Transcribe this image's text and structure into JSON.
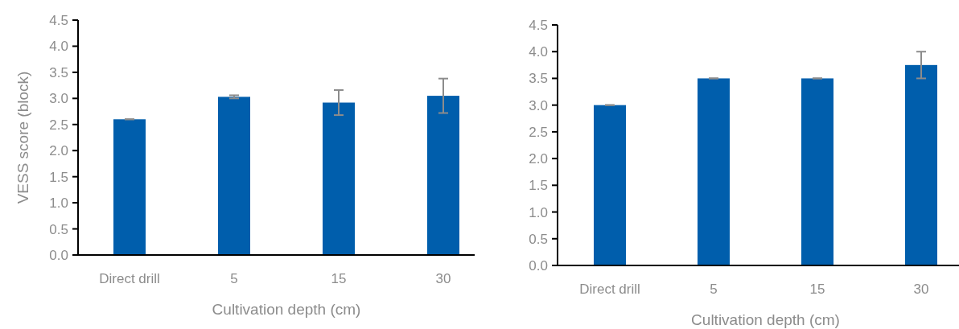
{
  "chart_data": [
    {
      "type": "bar",
      "ylabel": "VESS score (block)",
      "xlabel": "Cultivation depth (cm)",
      "categories": [
        "Direct drill",
        "5",
        "15",
        "30"
      ],
      "values": [
        2.6,
        3.03,
        2.92,
        3.05
      ],
      "errors": [
        0,
        0.03,
        0.24,
        0.33
      ],
      "color": "#005eac",
      "ylim": [
        0,
        4.5
      ],
      "yticks": [
        {
          "value": 0,
          "label": "0.0"
        },
        {
          "value": 0.5,
          "label": "0.5"
        },
        {
          "value": 1,
          "label": "1.0"
        },
        {
          "value": 1.5,
          "label": "1.5"
        },
        {
          "value": 2,
          "label": "2.0"
        },
        {
          "value": 2.5,
          "label": "2.5"
        },
        {
          "value": 3,
          "label": "3.0"
        },
        {
          "value": 3.5,
          "label": "3.5"
        },
        {
          "value": 4,
          "label": "4.0"
        },
        {
          "value": 4.5,
          "label": "4.5"
        }
      ],
      "grid": false
    },
    {
      "type": "bar",
      "xlabel": "Cultivation depth (cm)",
      "categories": [
        "Direct drill",
        "5",
        "15",
        "30"
      ],
      "values": [
        3.0,
        3.5,
        3.5,
        3.75
      ],
      "errors": [
        0,
        0,
        0,
        0.25
      ],
      "color": "#005eac",
      "ylim": [
        0,
        4.5
      ],
      "yticks": [
        {
          "value": 0,
          "label": "0.0"
        },
        {
          "value": 0.5,
          "label": "0.5"
        },
        {
          "value": 1,
          "label": "1.0"
        },
        {
          "value": 1.5,
          "label": "1.5"
        },
        {
          "value": 2,
          "label": "2.0"
        },
        {
          "value": 2.5,
          "label": "2.5"
        },
        {
          "value": 3,
          "label": "3.0"
        },
        {
          "value": 3.5,
          "label": "3.5"
        },
        {
          "value": 4,
          "label": "4.0"
        },
        {
          "value": 4.5,
          "label": "4.5"
        }
      ],
      "grid": false
    }
  ]
}
